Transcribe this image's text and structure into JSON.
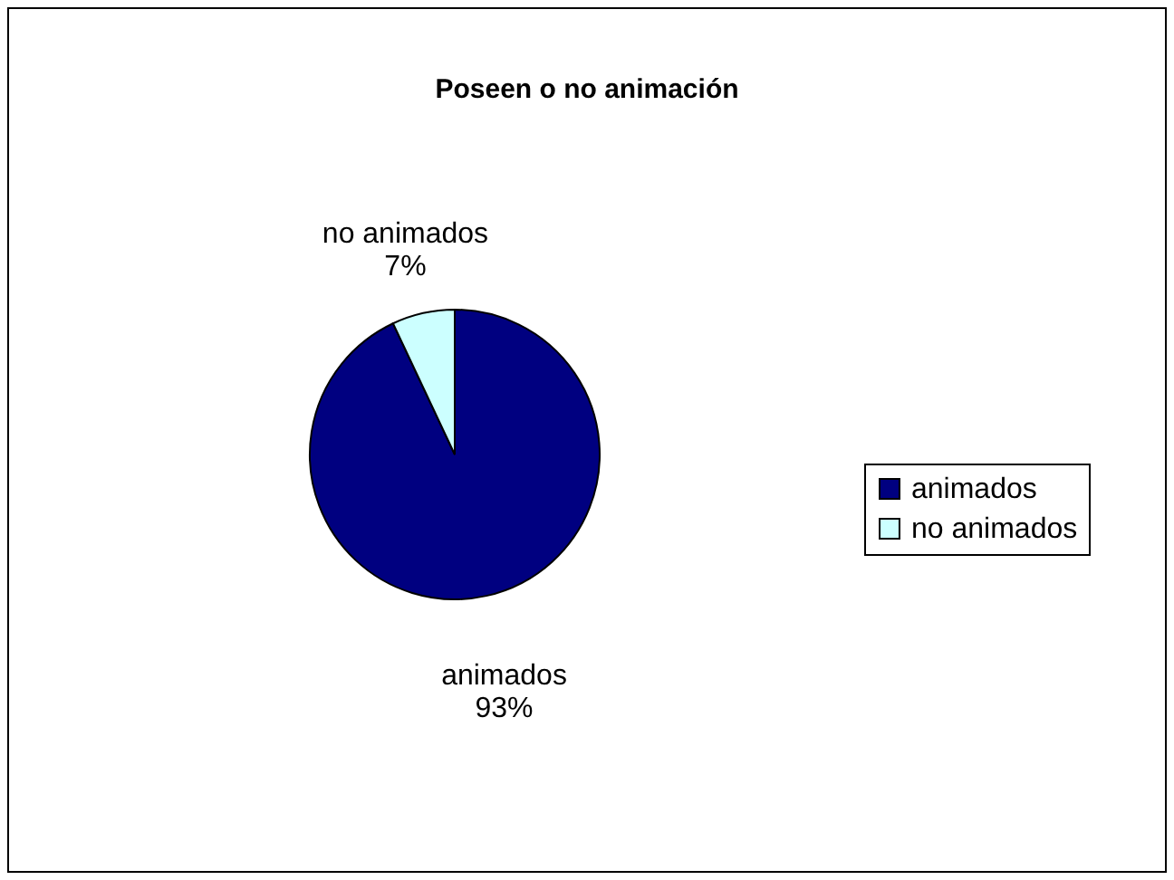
{
  "chart_data": {
    "type": "pie",
    "title": "Poseen o no animación",
    "categories": [
      "animados",
      "no animados"
    ],
    "values": [
      93,
      7
    ],
    "value_labels": [
      "93%",
      "7%"
    ],
    "colors": [
      "#000080",
      "#ccffff"
    ],
    "legend": "right"
  }
}
